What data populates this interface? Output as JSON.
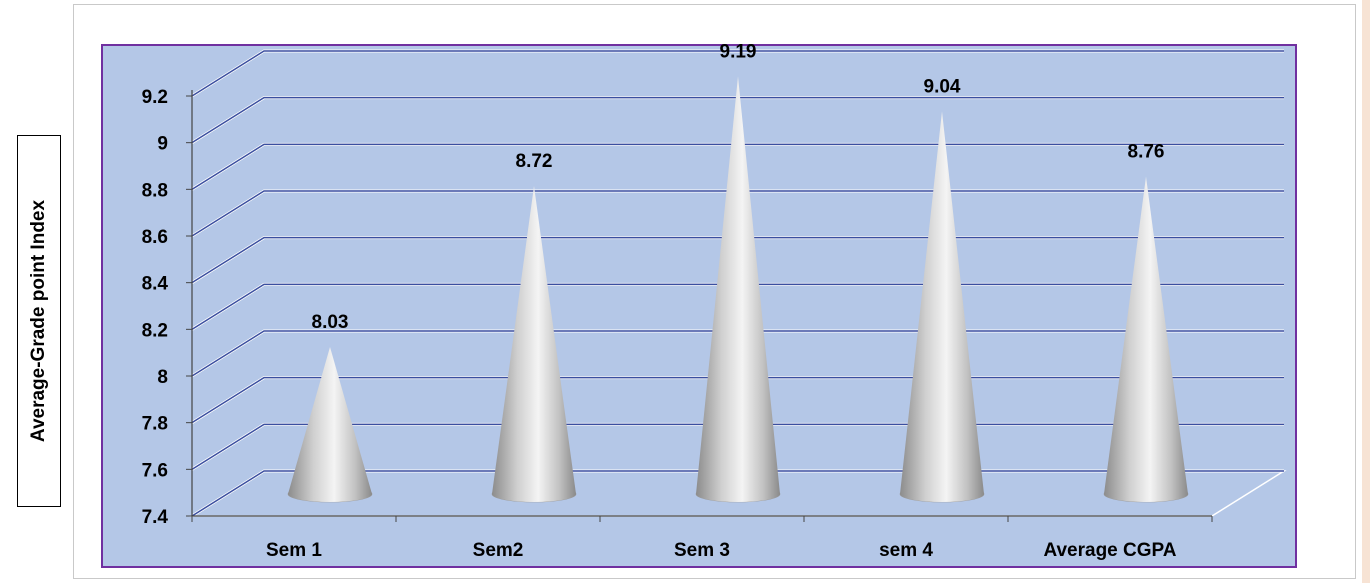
{
  "chart_data": {
    "type": "bar",
    "style": "3d-cone",
    "categories": [
      "Sem 1",
      "Sem2",
      "Sem 3",
      "sem 4",
      "Average CGPA"
    ],
    "values": [
      8.03,
      8.72,
      9.19,
      9.04,
      8.76
    ],
    "data_labels": [
      "8.03",
      "8.72",
      "9.19",
      "9.04",
      "8.76"
    ],
    "title": "",
    "xlabel": "",
    "ylabel": "Average-Grade point Index",
    "ylim": [
      7.4,
      9.2
    ],
    "y_ticks": [
      7.4,
      7.6,
      7.8,
      8,
      8.2,
      8.4,
      8.6,
      8.8,
      9,
      9.2
    ],
    "y_tick_labels": [
      "7.4",
      "7.6",
      "7.8",
      "8",
      "8.2",
      "8.4",
      "8.6",
      "8.8",
      "9",
      "9.2"
    ],
    "grid": true,
    "legend": "none",
    "colors": {
      "plot_background": "#b4c7e7",
      "plot_border": "#7030a0",
      "gridline": "#3b4fa0",
      "cone": "#c8c8c8"
    }
  }
}
